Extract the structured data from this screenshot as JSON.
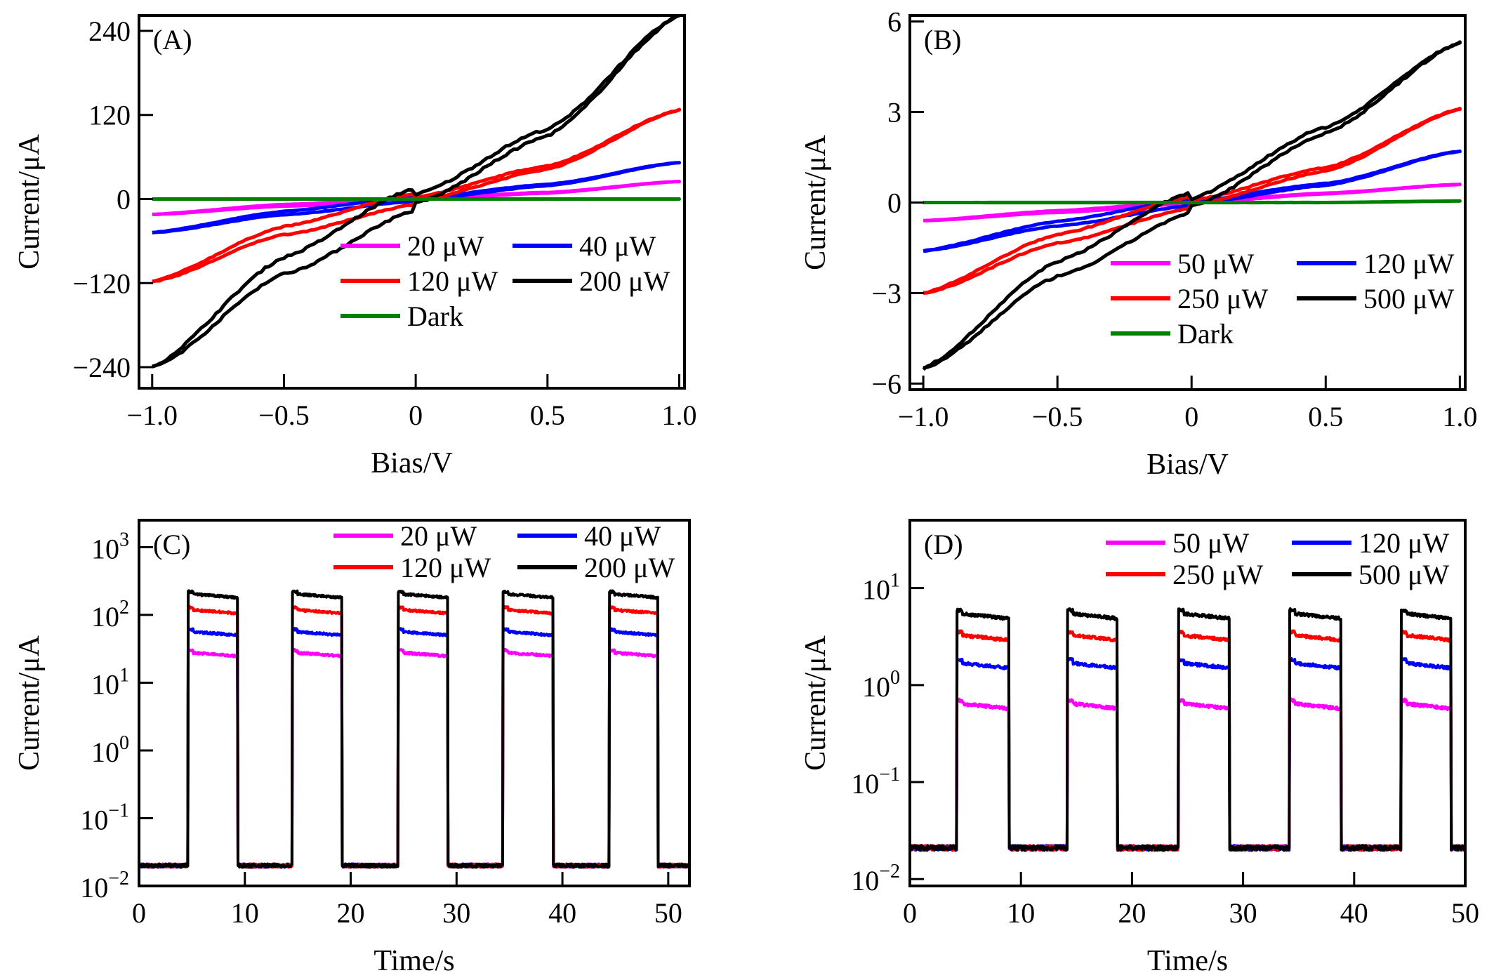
{
  "chart_data": [
    {
      "panel": "(A)",
      "type": "line",
      "xlabel": "Bias/V",
      "ylabel": "Current/μA",
      "xlim": [
        -1.05,
        1.02
      ],
      "ylim": [
        -270,
        262
      ],
      "xticks": [
        -1.0,
        -0.5,
        0,
        0.5,
        1.0
      ],
      "xtick_labels": [
        "−1.0",
        "−0.5",
        "0",
        "0.5",
        "1.0"
      ],
      "yticks": [
        -240,
        -120,
        0,
        120,
        240
      ],
      "ytick_labels": [
        "−240",
        "−120",
        "0",
        "120",
        "240"
      ],
      "legend_placement": "lower-right",
      "series": [
        {
          "name": "20 μW",
          "color": "#ff00ff",
          "x": [
            -1.0,
            -0.5,
            0,
            0.5,
            1.0
          ],
          "y": [
            -22,
            -9,
            0,
            9,
            25
          ]
        },
        {
          "name": "40 μW",
          "color": "#0000ff",
          "x": [
            -1.0,
            -0.5,
            0,
            0.5,
            1.0
          ],
          "y": [
            -48,
            -20,
            0,
            20,
            52
          ]
        },
        {
          "name": "120 μW",
          "color": "#ff0000",
          "x": [
            -1.0,
            -0.5,
            0,
            0.5,
            1.0
          ],
          "y": [
            -118,
            -45,
            0,
            45,
            127
          ]
        },
        {
          "name": "200 μW",
          "color": "#000000",
          "x": [
            -1.0,
            -0.5,
            0,
            0.5,
            1.0
          ],
          "y": [
            -240,
            -95,
            0,
            95,
            262
          ]
        },
        {
          "name": "Dark",
          "color": "#008000",
          "x": [
            -1.0,
            -0.5,
            0,
            0.5,
            1.0
          ],
          "y": [
            0,
            0,
            0,
            0,
            0
          ]
        }
      ]
    },
    {
      "panel": "(B)",
      "type": "line",
      "xlabel": "Bias/V",
      "ylabel": "Current/μA",
      "xlim": [
        -1.05,
        1.02
      ],
      "ylim": [
        -6.2,
        6.2
      ],
      "xticks": [
        -1.0,
        -0.5,
        0,
        0.5,
        1.0
      ],
      "xtick_labels": [
        "−1.0",
        "−0.5",
        "0",
        "0.5",
        "1.0"
      ],
      "yticks": [
        -6,
        -3,
        0,
        3,
        6
      ],
      "ytick_labels": [
        "−6",
        "−3",
        "0",
        "3",
        "6"
      ],
      "legend_placement": "lower-right",
      "series": [
        {
          "name": "50 μW",
          "color": "#ff00ff",
          "x": [
            -1.0,
            -0.5,
            0,
            0.5,
            1.0
          ],
          "y": [
            -0.6,
            -0.3,
            0,
            0.3,
            0.6
          ]
        },
        {
          "name": "120 μW",
          "color": "#0000ff",
          "x": [
            -1.0,
            -0.5,
            0,
            0.5,
            1.0
          ],
          "y": [
            -1.6,
            -0.7,
            0,
            0.6,
            1.7
          ]
        },
        {
          "name": "250 μW",
          "color": "#ff0000",
          "x": [
            -1.0,
            -0.5,
            0,
            0.5,
            1.0
          ],
          "y": [
            -3.0,
            -1.2,
            0,
            1.1,
            3.1
          ]
        },
        {
          "name": "500 μW",
          "color": "#000000",
          "x": [
            -1.0,
            -0.5,
            0,
            0.5,
            1.0
          ],
          "y": [
            -5.5,
            -2.2,
            0,
            2.4,
            5.3
          ]
        },
        {
          "name": "Dark",
          "color": "#008000",
          "x": [
            -1.0,
            -0.5,
            0,
            0.5,
            1.0
          ],
          "y": [
            0,
            0,
            0,
            0,
            0.05
          ]
        }
      ]
    },
    {
      "panel": "(C)",
      "type": "line",
      "yscale": "log",
      "xlabel": "Time/s",
      "ylabel": "Current/μA",
      "xlim": [
        0,
        52
      ],
      "ylim": [
        0.01,
        2500
      ],
      "xticks": [
        0,
        10,
        20,
        30,
        40,
        50
      ],
      "xtick_labels": [
        "0",
        "10",
        "20",
        "30",
        "40",
        "50"
      ],
      "yticks": [
        0.01,
        0.1,
        1,
        10,
        100,
        1000
      ],
      "ytick_labels": [
        {
          "base": "10",
          "exp": "−2"
        },
        {
          "base": "10",
          "exp": "−1"
        },
        {
          "base": "10",
          "exp": "0"
        },
        {
          "base": "10",
          "exp": "1"
        },
        {
          "base": "10",
          "exp": "2"
        },
        {
          "base": "10",
          "exp": "3"
        }
      ],
      "legend_placement": "top-right",
      "on_intervals": [
        [
          4.6,
          9.3
        ],
        [
          14.5,
          19.2
        ],
        [
          24.5,
          29.2
        ],
        [
          34.4,
          39.1
        ],
        [
          44.4,
          49.0
        ]
      ],
      "baseline": 0.02,
      "series": [
        {
          "name": "20 μW",
          "color": "#ff00ff",
          "on_value": 28
        },
        {
          "name": "40 μW",
          "color": "#0000ff",
          "on_value": 57
        },
        {
          "name": "120 μW",
          "color": "#ff0000",
          "on_value": 120
        },
        {
          "name": "200 μW",
          "color": "#000000",
          "on_value": 205
        }
      ]
    },
    {
      "panel": "(D)",
      "type": "line",
      "yscale": "log",
      "xlabel": "Time/s",
      "ylabel": "Current/μA",
      "xlim": [
        0,
        50
      ],
      "ylim": [
        0.0085,
        50
      ],
      "xticks": [
        0,
        10,
        20,
        30,
        40,
        50
      ],
      "xtick_labels": [
        "0",
        "10",
        "20",
        "30",
        "40",
        "50"
      ],
      "yticks": [
        0.01,
        0.1,
        1,
        10
      ],
      "ytick_labels": [
        {
          "base": "10",
          "exp": "−2"
        },
        {
          "base": "10",
          "exp": "−1"
        },
        {
          "base": "10",
          "exp": "0"
        },
        {
          "base": "10",
          "exp": "1"
        }
      ],
      "legend_placement": "top-right",
      "on_intervals": [
        [
          4.2,
          8.9
        ],
        [
          14.2,
          18.7
        ],
        [
          24.2,
          28.8
        ],
        [
          34.2,
          38.8
        ],
        [
          44.2,
          48.7
        ]
      ],
      "baseline": 0.021,
      "series": [
        {
          "name": "50 μW",
          "color": "#ff00ff",
          "on_value": 0.65
        },
        {
          "name": "120 μW",
          "color": "#0000ff",
          "on_value": 1.7
        },
        {
          "name": "250 μW",
          "color": "#ff0000",
          "on_value": 3.3
        },
        {
          "name": "500 μW",
          "color": "#000000",
          "on_value": 5.5
        }
      ]
    }
  ]
}
